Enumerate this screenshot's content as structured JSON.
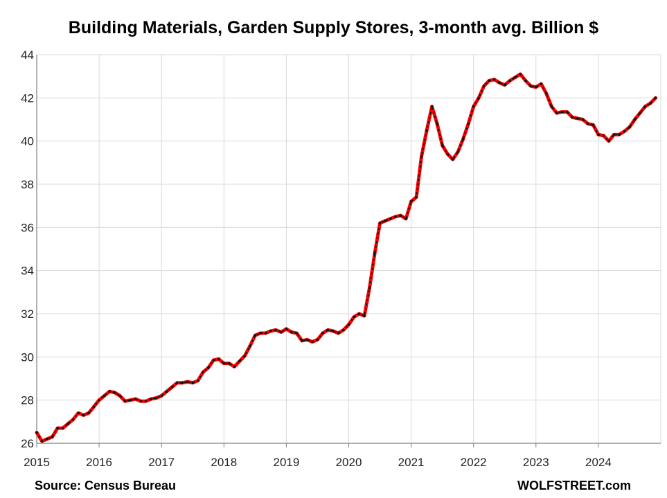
{
  "chart_data": {
    "type": "line",
    "title": "Building Materials, Garden Supply Stores, 3-month avg. Billion $",
    "xlabel": "",
    "ylabel": "",
    "xlim": [
      2015,
      2025
    ],
    "ylim": [
      26,
      44
    ],
    "x_ticks": [
      "2015",
      "2016",
      "2017",
      "2018",
      "2019",
      "2020",
      "2021",
      "2022",
      "2023",
      "2024"
    ],
    "y_ticks": [
      "26",
      "28",
      "30",
      "32",
      "34",
      "36",
      "38",
      "40",
      "42",
      "44"
    ],
    "grid": true,
    "legend": "none",
    "series": [
      {
        "line_color": "#ff0000",
        "marker_color": "#111111",
        "x_start": "2015-01",
        "frequency": "monthly",
        "values": [
          26.5,
          26.1,
          26.2,
          26.3,
          26.7,
          26.7,
          26.9,
          27.1,
          27.4,
          27.3,
          27.4,
          27.7,
          28.0,
          28.2,
          28.4,
          28.35,
          28.2,
          27.95,
          28.0,
          28.05,
          27.95,
          27.95,
          28.05,
          28.1,
          28.2,
          28.4,
          28.6,
          28.8,
          28.8,
          28.85,
          28.8,
          28.9,
          29.3,
          29.5,
          29.85,
          29.9,
          29.7,
          29.7,
          29.55,
          29.8,
          30.05,
          30.5,
          31.0,
          31.1,
          31.1,
          31.2,
          31.25,
          31.15,
          31.3,
          31.15,
          31.1,
          30.75,
          30.8,
          30.7,
          30.8,
          31.1,
          31.25,
          31.2,
          31.1,
          31.25,
          31.5,
          31.85,
          32.0,
          31.9,
          33.2,
          34.8,
          36.2,
          36.3,
          36.4,
          36.5,
          36.55,
          36.4,
          37.2,
          37.4,
          39.3,
          40.5,
          41.6,
          40.8,
          39.8,
          39.4,
          39.15,
          39.5,
          40.1,
          40.8,
          41.6,
          42.0,
          42.55,
          42.8,
          42.85,
          42.7,
          42.6,
          42.8,
          42.95,
          43.1,
          42.8,
          42.55,
          42.5,
          42.65,
          42.2,
          41.6,
          41.3,
          41.35,
          41.35,
          41.1,
          41.05,
          41.0,
          40.8,
          40.75,
          40.3,
          40.25,
          40.0,
          40.3,
          40.3,
          40.45,
          40.65,
          41.0,
          41.3,
          41.6,
          41.75,
          42.0
        ]
      }
    ]
  },
  "footer": {
    "source": "Source: Census Bureau",
    "credit": "WOLFSTREET.com"
  }
}
